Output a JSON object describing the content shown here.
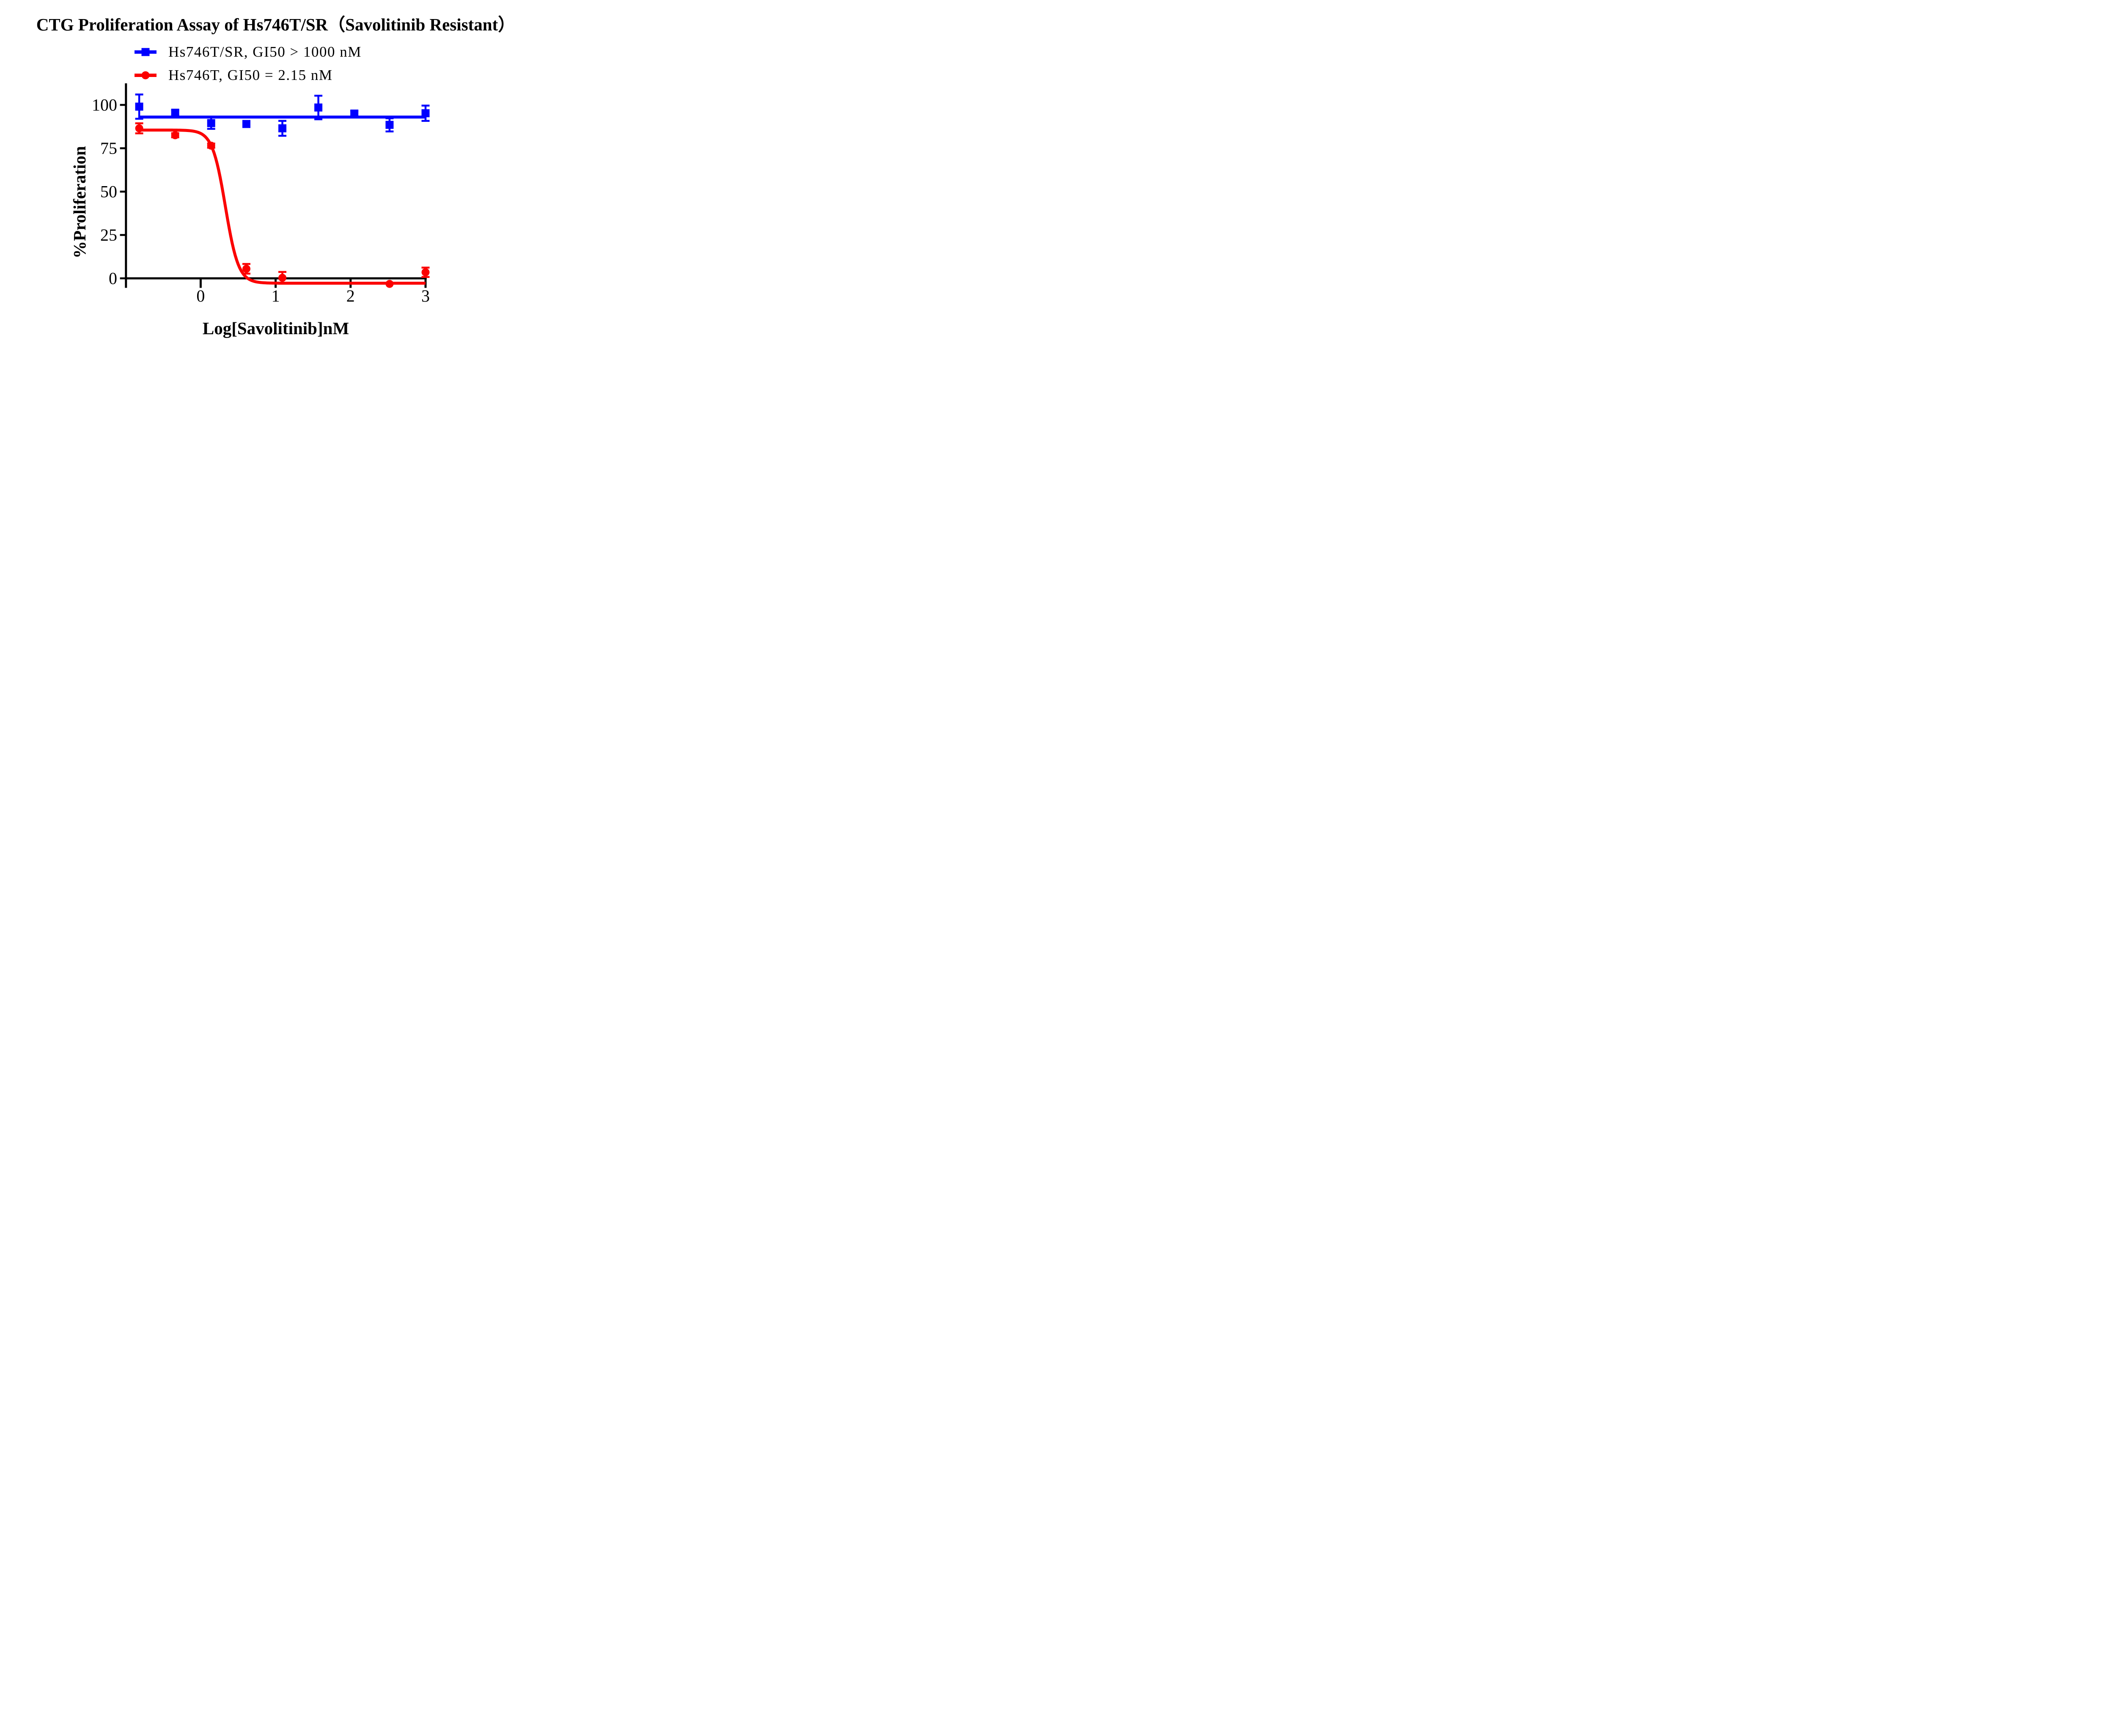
{
  "title": "CTG Proliferation Assay of Hs746T/SR（Savolitinib Resistant）",
  "legend": [
    {
      "label": "Hs746T/SR, GI50 > 1000 nM",
      "marker": "square",
      "color": "#0000ff"
    },
    {
      "label": "Hs746T, GI50 = 2.15 nM",
      "marker": "circle",
      "color": "#fb0000"
    }
  ],
  "chart_data": {
    "type": "scatter",
    "title": "CTG Proliferation Assay of Hs746T/SR（Savolitinib Resistant）",
    "xlabel": "Log[Savolitinib]nM",
    "ylabel": "%Proliferation",
    "xlim": [
      -1,
      3.05
    ],
    "ylim": [
      -8,
      112
    ],
    "x_ticks": [
      0,
      1,
      2,
      3
    ],
    "y_ticks": [
      0,
      25,
      50,
      75,
      100
    ],
    "grid": false,
    "legend_position": "top-left-above-plot",
    "series": [
      {
        "id": "hs746t-sr",
        "name": "Hs746T/SR, GI50 > 1000 nM",
        "color": "#0000ff",
        "marker": "square",
        "x": [
          -0.82,
          -0.34,
          0.14,
          0.61,
          1.09,
          1.57,
          2.05,
          2.52,
          3.0
        ],
        "y": [
          99,
          95.5,
          89.5,
          89,
          86.5,
          98.5,
          95,
          88.5,
          95.2
        ],
        "err": [
          7,
          1.5,
          3.3,
          1.5,
          4.3,
          6.8,
          1.5,
          3.8,
          4.4
        ],
        "fit": {
          "type": "flat",
          "value": 93
        }
      },
      {
        "id": "hs746t",
        "name": "Hs746T, GI50 = 2.15 nM",
        "color": "#fb0000",
        "marker": "circle",
        "x": [
          -0.82,
          -0.34,
          0.14,
          0.61,
          1.09,
          1.57,
          2.05,
          2.52,
          3.0
        ],
        "y": [
          86.5,
          82.5,
          76.5,
          5.5,
          0.3,
          null,
          null,
          -3.2,
          3.5
        ],
        "err": [
          2.9,
          1.2,
          1.2,
          2.8,
          3.4,
          0,
          0,
          0,
          2.7
        ],
        "fit": {
          "type": "sigmoid",
          "top": 85.5,
          "bottom": -2.8,
          "log_gi50": 0.33,
          "hill": 5.0
        }
      }
    ]
  }
}
